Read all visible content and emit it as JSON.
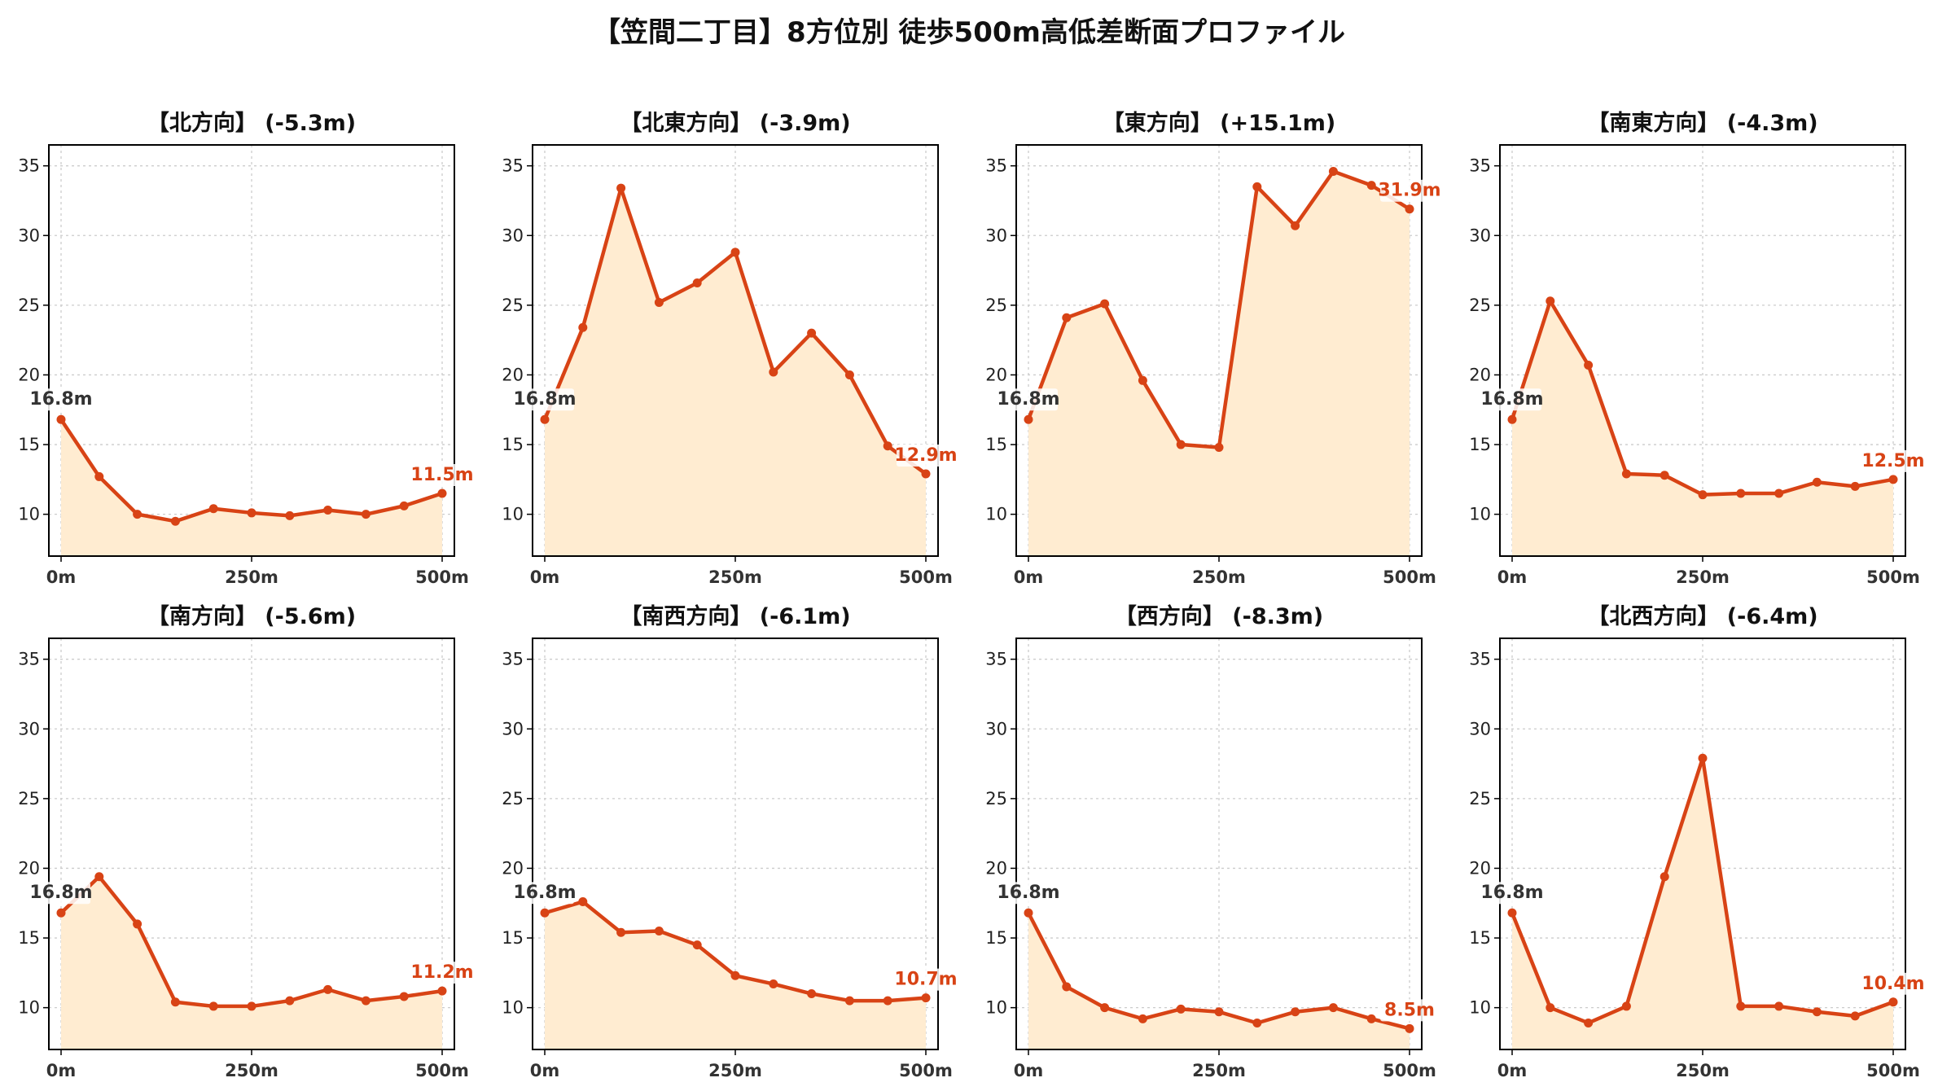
{
  "title": "【笠間二丁目】8方位別 徒歩500m高低差断面プロファイル",
  "colors": {
    "line": "#d84315",
    "fill": "#ffecd1",
    "grid": "#cccccc",
    "start_label": "#333333",
    "end_label": "#d84315"
  },
  "chart_data": [
    {
      "type": "area",
      "title": "【北方向】 (-5.3m)",
      "x": [
        0,
        50,
        100,
        150,
        200,
        250,
        300,
        350,
        400,
        450,
        500
      ],
      "y": [
        16.8,
        12.7,
        10.0,
        9.5,
        10.4,
        10.1,
        9.9,
        10.3,
        10.0,
        10.6,
        11.5
      ],
      "xticks": [
        "0m",
        "250m",
        "500m"
      ],
      "yticks": [
        10,
        15,
        20,
        25,
        30,
        35
      ],
      "ylim": [
        7,
        36.5
      ],
      "start_label": "16.8m",
      "end_label": "11.5m",
      "grid": true
    },
    {
      "type": "area",
      "title": "【北東方向】 (-3.9m)",
      "x": [
        0,
        50,
        100,
        150,
        200,
        250,
        300,
        350,
        400,
        450,
        500
      ],
      "y": [
        16.8,
        23.4,
        33.4,
        25.2,
        26.6,
        28.8,
        20.2,
        23.0,
        20.0,
        14.9,
        12.9
      ],
      "xticks": [
        "0m",
        "250m",
        "500m"
      ],
      "yticks": [
        10,
        15,
        20,
        25,
        30,
        35
      ],
      "ylim": [
        7,
        36.5
      ],
      "start_label": "16.8m",
      "end_label": "12.9m",
      "grid": true
    },
    {
      "type": "area",
      "title": "【東方向】 (+15.1m)",
      "x": [
        0,
        50,
        100,
        150,
        200,
        250,
        300,
        350,
        400,
        450,
        500
      ],
      "y": [
        16.8,
        24.1,
        25.1,
        19.6,
        15.0,
        14.8,
        33.5,
        30.7,
        34.6,
        33.6,
        31.9
      ],
      "xticks": [
        "0m",
        "250m",
        "500m"
      ],
      "yticks": [
        10,
        15,
        20,
        25,
        30,
        35
      ],
      "ylim": [
        7,
        36.5
      ],
      "start_label": "16.8m",
      "end_label": "31.9m",
      "grid": true
    },
    {
      "type": "area",
      "title": "【南東方向】 (-4.3m)",
      "x": [
        0,
        50,
        100,
        150,
        200,
        250,
        300,
        350,
        400,
        450,
        500
      ],
      "y": [
        16.8,
        25.3,
        20.7,
        12.9,
        12.8,
        11.4,
        11.5,
        11.5,
        12.3,
        12.0,
        12.5
      ],
      "xticks": [
        "0m",
        "250m",
        "500m"
      ],
      "yticks": [
        10,
        15,
        20,
        25,
        30,
        35
      ],
      "ylim": [
        7,
        36.5
      ],
      "start_label": "16.8m",
      "end_label": "12.5m",
      "grid": true
    },
    {
      "type": "area",
      "title": "【南方向】 (-5.6m)",
      "x": [
        0,
        50,
        100,
        150,
        200,
        250,
        300,
        350,
        400,
        450,
        500
      ],
      "y": [
        16.8,
        19.4,
        16.0,
        10.4,
        10.1,
        10.1,
        10.5,
        11.3,
        10.5,
        10.8,
        11.2
      ],
      "xticks": [
        "0m",
        "250m",
        "500m"
      ],
      "yticks": [
        10,
        15,
        20,
        25,
        30,
        35
      ],
      "ylim": [
        7,
        36.5
      ],
      "start_label": "16.8m",
      "end_label": "11.2m",
      "grid": true
    },
    {
      "type": "area",
      "title": "【南西方向】 (-6.1m)",
      "x": [
        0,
        50,
        100,
        150,
        200,
        250,
        300,
        350,
        400,
        450,
        500
      ],
      "y": [
        16.8,
        17.6,
        15.4,
        15.5,
        14.5,
        12.3,
        11.7,
        11.0,
        10.5,
        10.5,
        10.7
      ],
      "xticks": [
        "0m",
        "250m",
        "500m"
      ],
      "yticks": [
        10,
        15,
        20,
        25,
        30,
        35
      ],
      "ylim": [
        7,
        36.5
      ],
      "start_label": "16.8m",
      "end_label": "10.7m",
      "grid": true
    },
    {
      "type": "area",
      "title": "【西方向】 (-8.3m)",
      "x": [
        0,
        50,
        100,
        150,
        200,
        250,
        300,
        350,
        400,
        450,
        500
      ],
      "y": [
        16.8,
        11.5,
        10.0,
        9.2,
        9.9,
        9.7,
        8.9,
        9.7,
        10.0,
        9.2,
        8.5
      ],
      "xticks": [
        "0m",
        "250m",
        "500m"
      ],
      "yticks": [
        10,
        15,
        20,
        25,
        30,
        35
      ],
      "ylim": [
        7,
        36.5
      ],
      "start_label": "16.8m",
      "end_label": "8.5m",
      "grid": true
    },
    {
      "type": "area",
      "title": "【北西方向】 (-6.4m)",
      "x": [
        0,
        50,
        100,
        150,
        200,
        250,
        300,
        350,
        400,
        450,
        500
      ],
      "y": [
        16.8,
        10.0,
        8.9,
        10.1,
        19.4,
        27.9,
        10.1,
        10.1,
        9.7,
        9.4,
        10.4
      ],
      "xticks": [
        "0m",
        "250m",
        "500m"
      ],
      "yticks": [
        10,
        15,
        20,
        25,
        30,
        35
      ],
      "ylim": [
        7,
        36.5
      ],
      "start_label": "16.8m",
      "end_label": "10.4m",
      "grid": true
    }
  ]
}
